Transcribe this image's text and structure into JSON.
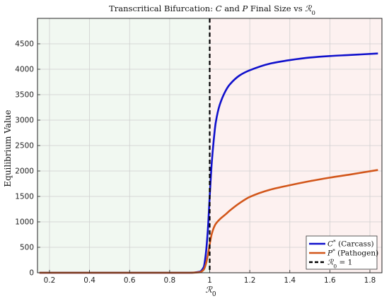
{
  "chart_data": {
    "type": "line",
    "title_parts": [
      "Transcritical Bifurcation: ",
      "C",
      " and ",
      "P",
      " Final Size vs ",
      "ℛ",
      "0"
    ],
    "xlabel_parts": [
      "ℛ",
      "0"
    ],
    "ylabel": "Equilibrium Value",
    "xlim": [
      0.14,
      1.86
    ],
    "ylim": [
      0,
      5000
    ],
    "xticks": [
      0.2,
      0.4,
      0.6,
      0.8,
      1,
      1.2,
      1.4,
      1.6,
      1.8
    ],
    "xtick_labels": [
      "0.2",
      "0.4",
      "0.6",
      "0.8",
      "1",
      "1.2",
      "1.4",
      "1.6",
      "1.8"
    ],
    "yticks": [
      0,
      500,
      1000,
      1500,
      2000,
      2500,
      3000,
      3500,
      4000,
      4500
    ],
    "ytick_labels": [
      "0",
      "500",
      "1000",
      "1500",
      "2000",
      "2500",
      "3000",
      "3500",
      "4000",
      "4500"
    ],
    "grid": true,
    "legend_position": "bottom-right",
    "background_regions": [
      {
        "x": [
          0.14,
          1.0
        ],
        "color": "#f1f8f1"
      },
      {
        "x": [
          1.0,
          1.86
        ],
        "color": "#fdf1f0"
      }
    ],
    "threshold": {
      "x": 1.0,
      "label_parts": [
        "ℛ",
        "0",
        " = 1"
      ],
      "color": "#000000"
    },
    "series": [
      {
        "label_parts": [
          "C",
          "*",
          " (Carcass)"
        ],
        "color": "#1010cc",
        "x": [
          0.15,
          0.5,
          0.9,
          0.95,
          0.97,
          0.98,
          0.99,
          1.0,
          1.01,
          1.02,
          1.03,
          1.05,
          1.08,
          1.1,
          1.15,
          1.2,
          1.3,
          1.4,
          1.5,
          1.6,
          1.7,
          1.84
        ],
        "y": [
          0,
          0,
          0,
          20,
          110,
          350,
          800,
          1500,
          2150,
          2600,
          2950,
          3300,
          3580,
          3700,
          3880,
          3980,
          4110,
          4180,
          4230,
          4260,
          4280,
          4310
        ]
      },
      {
        "label_parts": [
          "P",
          "*",
          " (Pathogen)"
        ],
        "color": "#d2561a",
        "x": [
          0.15,
          0.5,
          0.9,
          0.95,
          0.97,
          0.98,
          0.99,
          1.0,
          1.01,
          1.02,
          1.03,
          1.05,
          1.08,
          1.1,
          1.15,
          1.2,
          1.3,
          1.4,
          1.5,
          1.6,
          1.7,
          1.84
        ],
        "y": [
          0,
          0,
          0,
          10,
          60,
          160,
          330,
          560,
          760,
          880,
          960,
          1050,
          1150,
          1220,
          1370,
          1490,
          1630,
          1720,
          1800,
          1870,
          1930,
          2020
        ]
      }
    ]
  }
}
